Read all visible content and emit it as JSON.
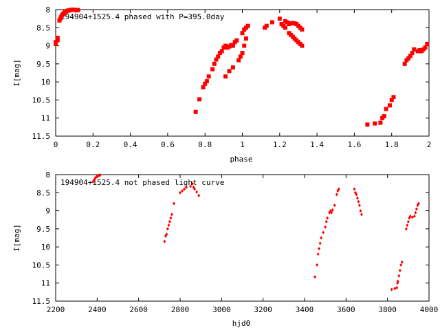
{
  "chart_data": [
    {
      "type": "scatter",
      "title": "194904+1525.4 phased with P=395.0day",
      "xlabel": "phase",
      "ylabel": "I[mag]",
      "xlim": [
        0,
        2
      ],
      "ylim": [
        11.5,
        8
      ],
      "y_inverted": true,
      "xticks": [
        "0",
        "0.2",
        "0.4",
        "0.6",
        "0.8",
        "1",
        "1.2",
        "1.4",
        "1.6",
        "1.8",
        "2"
      ],
      "yticks": [
        "8",
        "8.5",
        "9",
        "9.5",
        "10",
        "10.5",
        "11",
        "11.5"
      ],
      "color": "#ff0000",
      "marker": "filled square",
      "points": [
        [
          0.0,
          8.95
        ],
        [
          0.0,
          8.9
        ],
        [
          0.01,
          8.85
        ],
        [
          0.01,
          8.78
        ],
        [
          0.02,
          8.3
        ],
        [
          0.025,
          8.25
        ],
        [
          0.03,
          8.2
        ],
        [
          0.035,
          8.15
        ],
        [
          0.04,
          8.12
        ],
        [
          0.045,
          8.1
        ],
        [
          0.05,
          8.07
        ],
        [
          0.055,
          8.05
        ],
        [
          0.06,
          8.04
        ],
        [
          0.065,
          8.03
        ],
        [
          0.07,
          8.02
        ],
        [
          0.08,
          8.01
        ],
        [
          0.09,
          8.0
        ],
        [
          0.1,
          8.0
        ],
        [
          0.11,
          8.02
        ],
        [
          0.12,
          8.01
        ],
        [
          0.75,
          10.83
        ],
        [
          0.77,
          10.48
        ],
        [
          0.79,
          10.15
        ],
        [
          0.8,
          10.05
        ],
        [
          0.81,
          9.98
        ],
        [
          0.82,
          9.85
        ],
        [
          0.84,
          9.65
        ],
        [
          0.85,
          9.5
        ],
        [
          0.86,
          9.38
        ],
        [
          0.87,
          9.3
        ],
        [
          0.88,
          9.2
        ],
        [
          0.89,
          9.15
        ],
        [
          0.9,
          9.05
        ],
        [
          0.91,
          9.0
        ],
        [
          0.92,
          9.05
        ],
        [
          0.93,
          9.02
        ],
        [
          0.94,
          8.98
        ],
        [
          0.95,
          9.0
        ],
        [
          0.96,
          8.9
        ],
        [
          0.97,
          8.85
        ],
        [
          0.91,
          9.85
        ],
        [
          0.93,
          9.7
        ],
        [
          0.95,
          9.6
        ],
        [
          0.98,
          9.4
        ],
        [
          0.99,
          9.3
        ],
        [
          1.0,
          9.2
        ],
        [
          1.01,
          9.0
        ],
        [
          1.02,
          8.8
        ],
        [
          1.0,
          8.65
        ],
        [
          1.01,
          8.55
        ],
        [
          1.02,
          8.5
        ],
        [
          1.03,
          8.45
        ],
        [
          1.12,
          8.5
        ],
        [
          1.13,
          8.45
        ],
        [
          1.16,
          8.35
        ],
        [
          1.2,
          8.25
        ],
        [
          1.21,
          8.4
        ],
        [
          1.22,
          8.45
        ],
        [
          1.23,
          8.5
        ],
        [
          1.23,
          8.32
        ],
        [
          1.24,
          8.35
        ],
        [
          1.25,
          8.4
        ],
        [
          1.26,
          8.38
        ],
        [
          1.27,
          8.37
        ],
        [
          1.28,
          8.38
        ],
        [
          1.29,
          8.4
        ],
        [
          1.3,
          8.45
        ],
        [
          1.31,
          8.5
        ],
        [
          1.32,
          8.55
        ],
        [
          1.25,
          8.65
        ],
        [
          1.26,
          8.7
        ],
        [
          1.27,
          8.75
        ],
        [
          1.28,
          8.8
        ],
        [
          1.29,
          8.85
        ],
        [
          1.3,
          8.9
        ],
        [
          1.31,
          8.95
        ],
        [
          1.32,
          9.0
        ],
        [
          1.67,
          11.18
        ],
        [
          1.71,
          11.15
        ],
        [
          1.74,
          11.13
        ],
        [
          1.75,
          11.0
        ],
        [
          1.76,
          10.95
        ],
        [
          1.77,
          10.75
        ],
        [
          1.79,
          10.65
        ],
        [
          1.8,
          10.5
        ],
        [
          1.81,
          10.42
        ],
        [
          1.87,
          9.5
        ],
        [
          1.88,
          9.4
        ],
        [
          1.89,
          9.35
        ],
        [
          1.9,
          9.28
        ],
        [
          1.91,
          9.2
        ],
        [
          1.92,
          9.1
        ],
        [
          1.94,
          9.15
        ],
        [
          1.95,
          9.12
        ],
        [
          1.96,
          9.15
        ],
        [
          1.97,
          9.1
        ],
        [
          1.98,
          9.05
        ],
        [
          1.99,
          8.95
        ]
      ]
    },
    {
      "type": "scatter",
      "title": "194904+1525.4 not phased light curve",
      "xlabel": "hjd0",
      "ylabel": "I[mag]",
      "xlim": [
        2200,
        4000
      ],
      "ylim": [
        11.5,
        8
      ],
      "y_inverted": true,
      "xticks": [
        "2200",
        "2400",
        "2600",
        "2800",
        "3000",
        "3200",
        "3400",
        "3600",
        "3800",
        "4000"
      ],
      "yticks": [
        "8",
        "8.5",
        "9",
        "9.5",
        "10",
        "10.5",
        "11",
        "11.5"
      ],
      "color": "#ff0000",
      "marker": "small filled diamond",
      "points": [
        [
          2380,
          8.2
        ],
        [
          2385,
          8.15
        ],
        [
          2390,
          8.1
        ],
        [
          2395,
          8.07
        ],
        [
          2400,
          8.04
        ],
        [
          2405,
          8.03
        ],
        [
          2410,
          8.02
        ],
        [
          2415,
          8.01
        ],
        [
          2725,
          9.85
        ],
        [
          2730,
          9.7
        ],
        [
          2735,
          9.65
        ],
        [
          2740,
          9.5
        ],
        [
          2745,
          9.4
        ],
        [
          2750,
          9.3
        ],
        [
          2755,
          9.2
        ],
        [
          2760,
          9.1
        ],
        [
          2770,
          8.8
        ],
        [
          2800,
          8.5
        ],
        [
          2810,
          8.45
        ],
        [
          2820,
          8.4
        ],
        [
          2830,
          8.35
        ],
        [
          2850,
          8.32
        ],
        [
          2860,
          8.25
        ],
        [
          2865,
          8.35
        ],
        [
          2870,
          8.4
        ],
        [
          2880,
          8.48
        ],
        [
          2890,
          8.58
        ],
        [
          3450,
          10.83
        ],
        [
          3460,
          10.5
        ],
        [
          3465,
          10.2
        ],
        [
          3470,
          10.05
        ],
        [
          3475,
          9.9
        ],
        [
          3480,
          9.75
        ],
        [
          3490,
          9.6
        ],
        [
          3500,
          9.45
        ],
        [
          3505,
          9.3
        ],
        [
          3510,
          9.2
        ],
        [
          3520,
          9.05
        ],
        [
          3525,
          9.0
        ],
        [
          3530,
          9.05
        ],
        [
          3535,
          8.98
        ],
        [
          3545,
          8.85
        ],
        [
          3555,
          8.55
        ],
        [
          3560,
          8.45
        ],
        [
          3565,
          8.4
        ],
        [
          3640,
          8.4
        ],
        [
          3645,
          8.5
        ],
        [
          3650,
          8.55
        ],
        [
          3655,
          8.65
        ],
        [
          3660,
          8.75
        ],
        [
          3665,
          8.85
        ],
        [
          3670,
          9.0
        ],
        [
          3675,
          9.1
        ],
        [
          3820,
          11.18
        ],
        [
          3835,
          11.15
        ],
        [
          3845,
          11.13
        ],
        [
          3848,
          11.0
        ],
        [
          3850,
          10.95
        ],
        [
          3855,
          10.8
        ],
        [
          3860,
          10.65
        ],
        [
          3865,
          10.5
        ],
        [
          3870,
          10.42
        ],
        [
          3890,
          9.5
        ],
        [
          3895,
          9.4
        ],
        [
          3900,
          9.3
        ],
        [
          3905,
          9.2
        ],
        [
          3910,
          9.15
        ],
        [
          3920,
          9.18
        ],
        [
          3930,
          9.15
        ],
        [
          3935,
          9.05
        ],
        [
          3940,
          8.95
        ],
        [
          3945,
          8.85
        ],
        [
          3950,
          8.8
        ]
      ]
    }
  ]
}
